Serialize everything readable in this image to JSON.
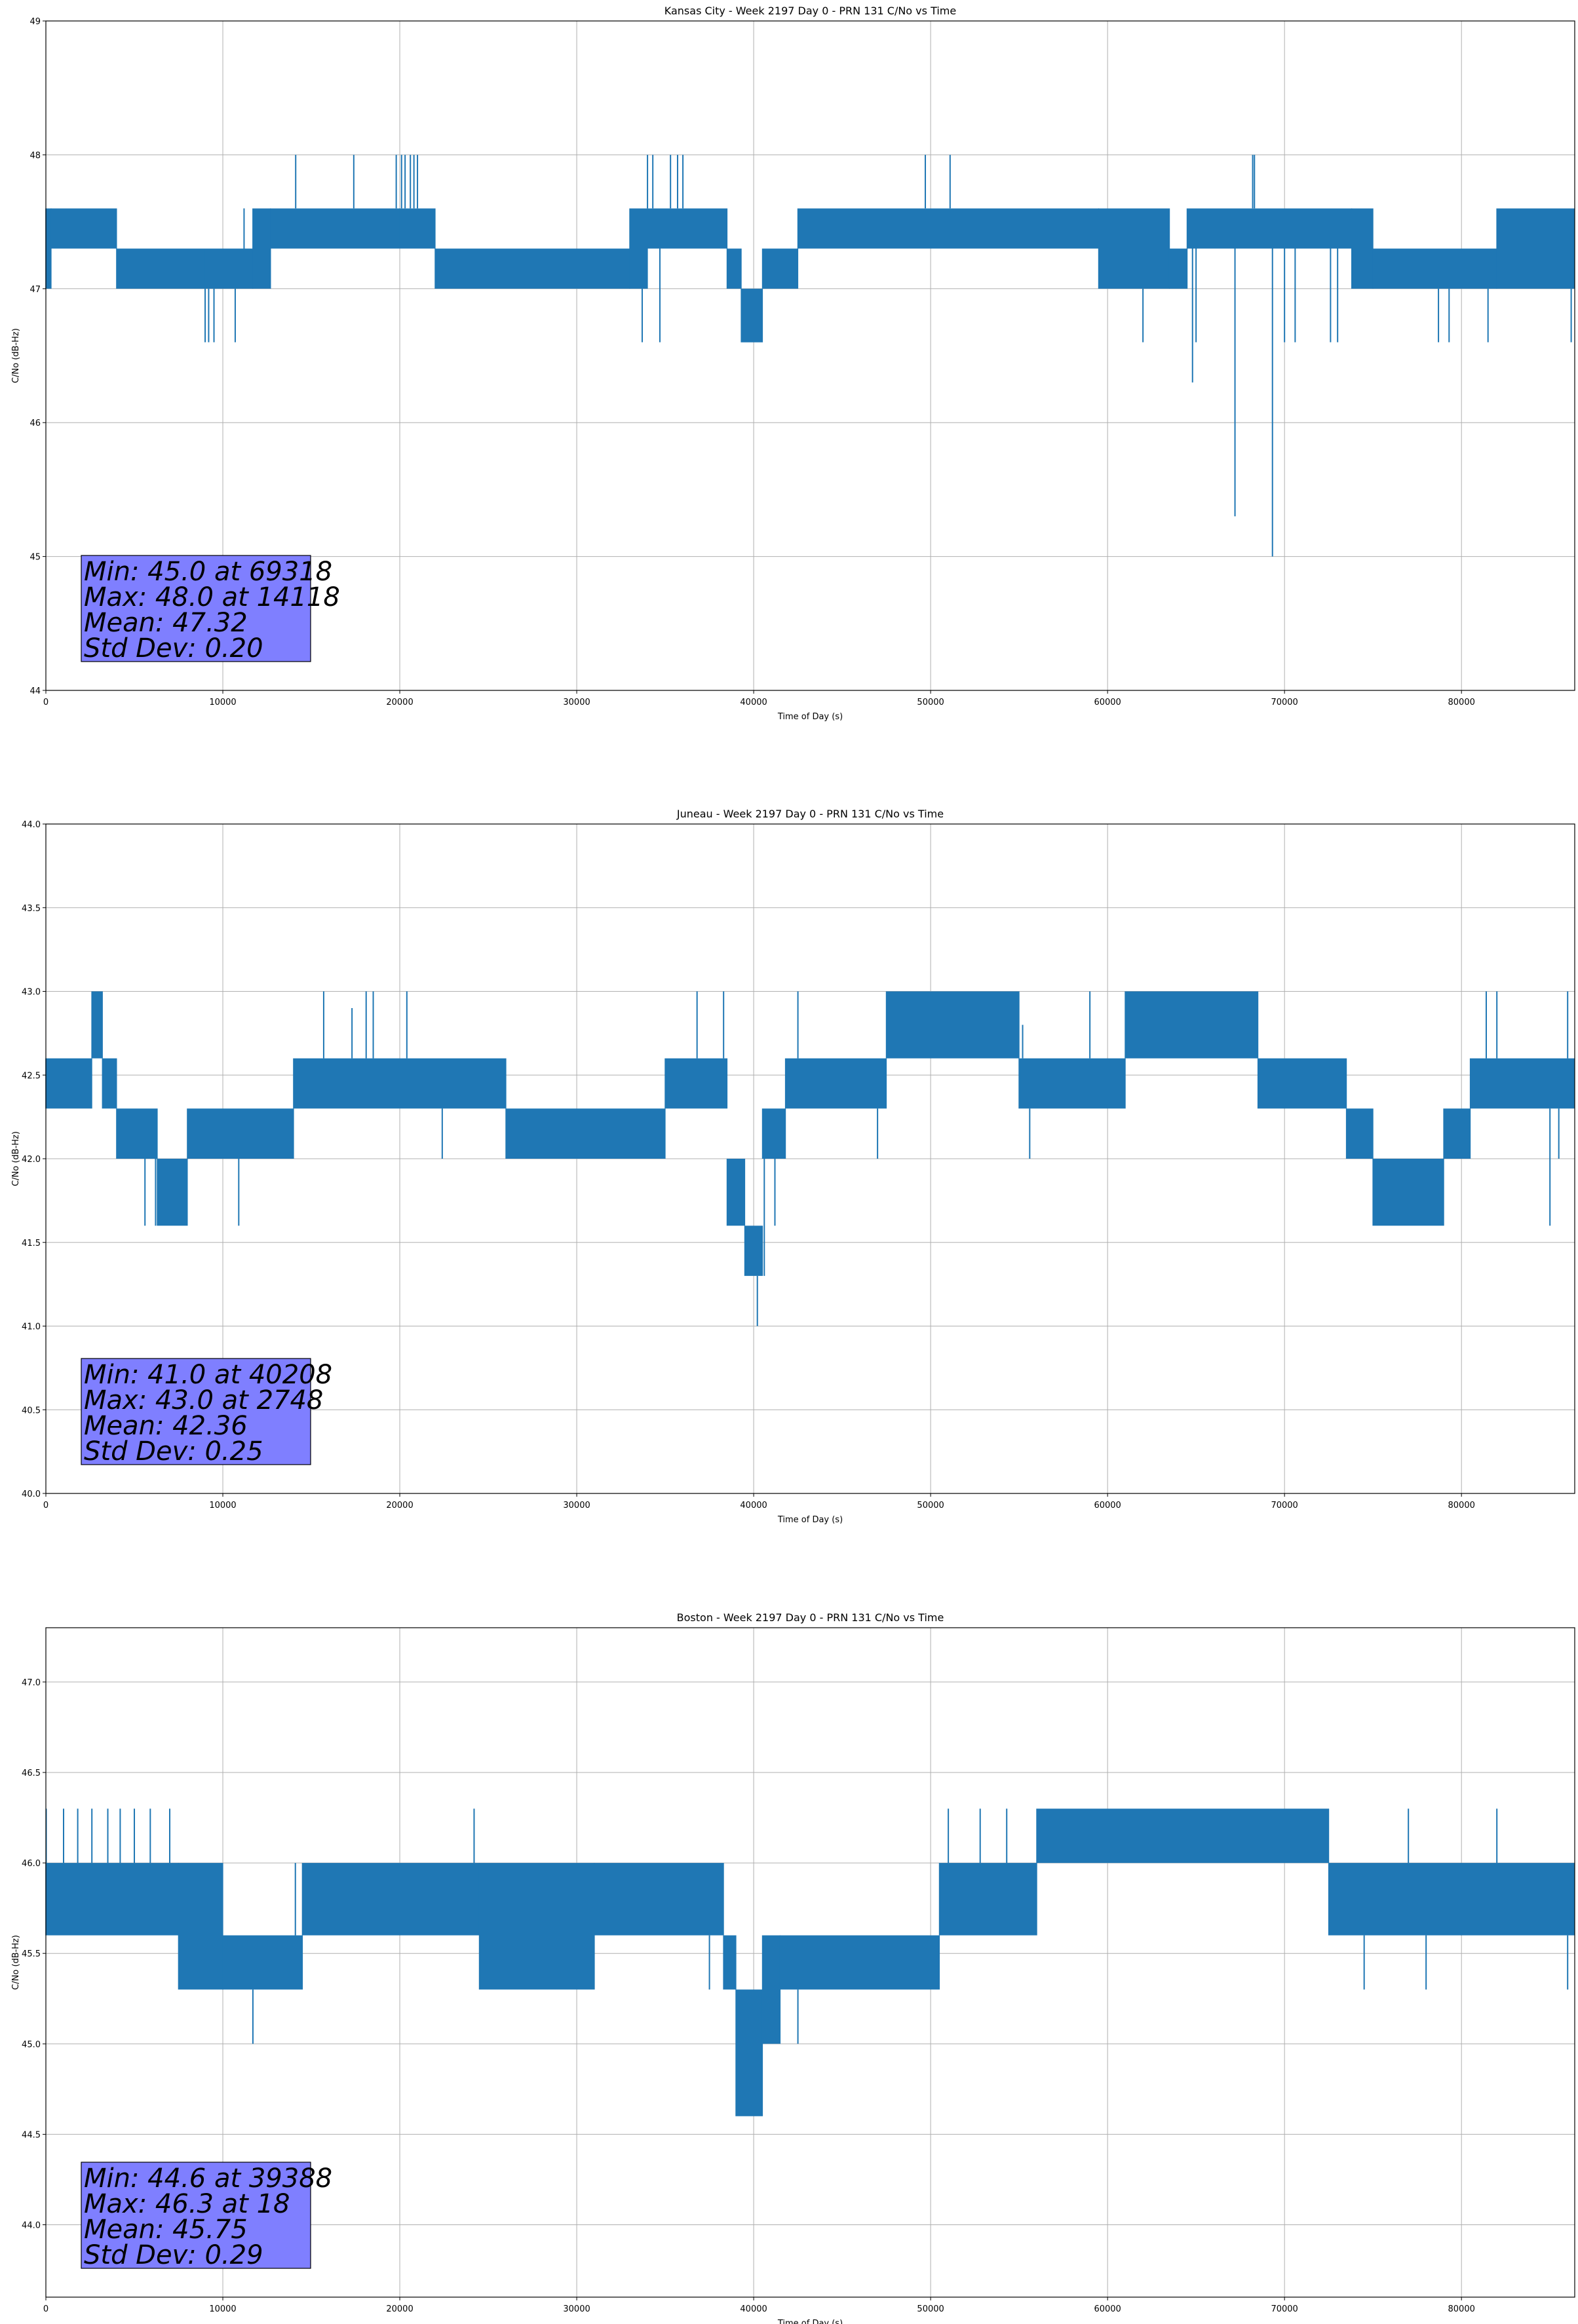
{
  "colors": {
    "line": "#1f77b4",
    "grid": "#b0b0b0",
    "stats_box": "#7f7fff",
    "axes": "#000000"
  },
  "chart_data": [
    {
      "type": "line",
      "title": "Kansas City - Week 2197 Day 0 - PRN 131 C/No vs Time",
      "xlabel": "Time of Day (s)",
      "ylabel": "C/No (dB-Hz)",
      "xlim": [
        0,
        86400
      ],
      "ylim": [
        44,
        49
      ],
      "xticks": [
        0,
        10000,
        20000,
        30000,
        40000,
        50000,
        60000,
        70000,
        80000
      ],
      "yticks": [
        44,
        45,
        46,
        47,
        48,
        49
      ],
      "xtick_labels": [
        "0",
        "10000",
        "20000",
        "30000",
        "40000",
        "50000",
        "60000",
        "70000",
        "80000"
      ],
      "ytick_labels": [
        "44",
        "45",
        "46",
        "47",
        "48",
        "49"
      ],
      "grid": true,
      "stats": [
        "Min: 45.0 at 69318",
        "Max: 48.0 at 14118",
        "Mean: 47.32",
        "Std Dev: 0.20"
      ],
      "bands": [
        [
          0,
          300,
          47.0,
          47.6
        ],
        [
          300,
          4000,
          47.3,
          47.6
        ],
        [
          4000,
          9000,
          47.0,
          47.3
        ],
        [
          9000,
          11700,
          47.0,
          47.3
        ],
        [
          11700,
          12700,
          47.0,
          47.6
        ],
        [
          12700,
          20000,
          47.3,
          47.6
        ],
        [
          20000,
          22000,
          47.3,
          47.6
        ],
        [
          22000,
          33000,
          47.0,
          47.3
        ],
        [
          33000,
          34000,
          47.0,
          47.6
        ],
        [
          34000,
          38500,
          47.3,
          47.6
        ],
        [
          38500,
          39300,
          47.0,
          47.3
        ],
        [
          39300,
          40500,
          46.6,
          47.0
        ],
        [
          40500,
          42500,
          47.0,
          47.3
        ],
        [
          42500,
          59500,
          47.3,
          47.6
        ],
        [
          59500,
          63500,
          47.0,
          47.6
        ],
        [
          63500,
          64500,
          47.0,
          47.3
        ],
        [
          64500,
          73800,
          47.3,
          47.6
        ],
        [
          73800,
          75000,
          47.0,
          47.6
        ],
        [
          75000,
          82000,
          47.0,
          47.3
        ],
        [
          82000,
          86400,
          47.0,
          47.6
        ]
      ],
      "spikes": [
        [
          9000,
          46.6
        ],
        [
          9200,
          46.6
        ],
        [
          9500,
          46.6
        ],
        [
          10700,
          46.6
        ],
        [
          11200,
          47.6
        ],
        [
          14118,
          48.0
        ],
        [
          17400,
          48.0
        ],
        [
          19800,
          48.0
        ],
        [
          20100,
          48.0
        ],
        [
          20300,
          48.0
        ],
        [
          20600,
          48.0
        ],
        [
          20800,
          48.0
        ],
        [
          21000,
          48.0
        ],
        [
          22300,
          47.0
        ],
        [
          33700,
          46.6
        ],
        [
          34000,
          48.0
        ],
        [
          34300,
          48.0
        ],
        [
          34700,
          46.6
        ],
        [
          35300,
          48.0
        ],
        [
          35700,
          48.0
        ],
        [
          36000,
          48.0
        ],
        [
          49700,
          48.0
        ],
        [
          51100,
          48.0
        ],
        [
          62000,
          46.6
        ],
        [
          64800,
          46.3
        ],
        [
          65000,
          46.6
        ],
        [
          67200,
          45.3
        ],
        [
          68200,
          48.0
        ],
        [
          68300,
          48.0
        ],
        [
          69318,
          45.0
        ],
        [
          70000,
          46.6
        ],
        [
          70600,
          46.6
        ],
        [
          72600,
          46.6
        ],
        [
          73000,
          46.6
        ],
        [
          78700,
          46.6
        ],
        [
          79300,
          46.6
        ],
        [
          81500,
          46.6
        ],
        [
          86200,
          46.6
        ]
      ]
    },
    {
      "type": "line",
      "title": "Juneau - Week 2197 Day 0 - PRN 131 C/No vs Time",
      "xlabel": "Time of Day (s)",
      "ylabel": "C/No (dB-Hz)",
      "xlim": [
        0,
        86400
      ],
      "ylim": [
        40.0,
        44.0
      ],
      "xticks": [
        0,
        10000,
        20000,
        30000,
        40000,
        50000,
        60000,
        70000,
        80000
      ],
      "yticks": [
        40.0,
        40.5,
        41.0,
        41.5,
        42.0,
        42.5,
        43.0,
        43.5,
        44.0
      ],
      "xtick_labels": [
        "0",
        "10000",
        "20000",
        "30000",
        "40000",
        "50000",
        "60000",
        "70000",
        "80000"
      ],
      "ytick_labels": [
        "40.0",
        "40.5",
        "41.0",
        "41.5",
        "42.0",
        "42.5",
        "43.0",
        "43.5",
        "44.0"
      ],
      "grid": true,
      "stats": [
        "Min: 41.0 at 40208",
        "Max: 43.0 at 2748",
        "Mean: 42.36",
        "Std Dev: 0.25"
      ],
      "bands": [
        [
          0,
          2600,
          42.3,
          42.6
        ],
        [
          2600,
          3200,
          42.6,
          43.0
        ],
        [
          3200,
          4000,
          42.3,
          42.6
        ],
        [
          4000,
          6300,
          42.0,
          42.3
        ],
        [
          6300,
          8000,
          41.6,
          42.0
        ],
        [
          8000,
          14000,
          42.0,
          42.3
        ],
        [
          14000,
          26000,
          42.3,
          42.6
        ],
        [
          26000,
          35000,
          42.0,
          42.3
        ],
        [
          35000,
          38500,
          42.3,
          42.6
        ],
        [
          38500,
          39500,
          41.6,
          42.0
        ],
        [
          39500,
          40500,
          41.3,
          41.6
        ],
        [
          40500,
          41800,
          42.0,
          42.3
        ],
        [
          41800,
          47500,
          42.3,
          42.6
        ],
        [
          47500,
          55000,
          42.6,
          43.0
        ],
        [
          55000,
          61000,
          42.3,
          42.6
        ],
        [
          61000,
          68500,
          42.6,
          43.0
        ],
        [
          68500,
          73500,
          42.3,
          42.6
        ],
        [
          73500,
          75000,
          42.0,
          42.3
        ],
        [
          75000,
          79000,
          41.6,
          42.0
        ],
        [
          79000,
          80500,
          42.0,
          42.3
        ],
        [
          80500,
          86400,
          42.3,
          42.6
        ]
      ],
      "spikes": [
        [
          2748,
          43.0
        ],
        [
          3100,
          43.0
        ],
        [
          5600,
          41.6
        ],
        [
          6200,
          41.6
        ],
        [
          10900,
          41.6
        ],
        [
          15700,
          43.0
        ],
        [
          17300,
          42.9
        ],
        [
          18100,
          43.0
        ],
        [
          18500,
          43.0
        ],
        [
          20400,
          43.0
        ],
        [
          22400,
          42.0
        ],
        [
          36800,
          43.0
        ],
        [
          38300,
          43.0
        ],
        [
          40208,
          41.0
        ],
        [
          40600,
          41.3
        ],
        [
          41200,
          41.6
        ],
        [
          42500,
          43.0
        ],
        [
          47000,
          42.0
        ],
        [
          55200,
          42.8
        ],
        [
          55600,
          42.0
        ],
        [
          59000,
          43.0
        ],
        [
          76000,
          41.6
        ],
        [
          81400,
          43.0
        ],
        [
          82000,
          43.0
        ],
        [
          85000,
          41.6
        ],
        [
          85500,
          42.0
        ],
        [
          86000,
          43.0
        ]
      ]
    },
    {
      "type": "line",
      "title": "Boston - Week 2197 Day 0 - PRN 131 C/No vs Time",
      "xlabel": "Time of Day (s)",
      "ylabel": "C/No (dB-Hz)",
      "xlim": [
        0,
        86400
      ],
      "ylim": [
        43.6,
        47.3
      ],
      "xticks": [
        0,
        10000,
        20000,
        30000,
        40000,
        50000,
        60000,
        70000,
        80000
      ],
      "yticks": [
        44.0,
        44.5,
        45.0,
        45.5,
        46.0,
        46.5,
        47.0
      ],
      "xtick_labels": [
        "0",
        "10000",
        "20000",
        "30000",
        "40000",
        "50000",
        "60000",
        "70000",
        "80000"
      ],
      "ytick_labels": [
        "44.0",
        "44.5",
        "45.0",
        "45.5",
        "46.0",
        "46.5",
        "47.0"
      ],
      "grid": true,
      "stats": [
        "Min: 44.6 at 39388",
        "Max: 46.3 at 18",
        "Mean: 45.75",
        "Std Dev: 0.29"
      ],
      "bands": [
        [
          0,
          7500,
          45.6,
          46.0
        ],
        [
          7500,
          10000,
          45.3,
          46.0
        ],
        [
          10000,
          14500,
          45.3,
          45.6
        ],
        [
          14500,
          24500,
          45.6,
          46.0
        ],
        [
          24500,
          31000,
          45.3,
          46.0
        ],
        [
          31000,
          38300,
          45.6,
          46.0
        ],
        [
          38300,
          39000,
          45.3,
          45.6
        ],
        [
          39000,
          40500,
          44.6,
          45.3
        ],
        [
          40500,
          41500,
          45.0,
          45.6
        ],
        [
          41500,
          50500,
          45.3,
          45.6
        ],
        [
          50500,
          56000,
          45.6,
          46.0
        ],
        [
          56000,
          72500,
          46.0,
          46.3
        ],
        [
          72500,
          80000,
          45.6,
          46.0
        ],
        [
          80000,
          86400,
          45.6,
          46.0
        ]
      ],
      "spikes": [
        [
          18,
          46.3
        ],
        [
          1000,
          46.3
        ],
        [
          1800,
          46.3
        ],
        [
          2600,
          46.3
        ],
        [
          3500,
          46.3
        ],
        [
          4200,
          46.3
        ],
        [
          5000,
          46.3
        ],
        [
          5900,
          46.3
        ],
        [
          7000,
          46.3
        ],
        [
          11700,
          45.0
        ],
        [
          14100,
          46.0
        ],
        [
          24200,
          46.3
        ],
        [
          27000,
          45.3
        ],
        [
          37500,
          45.3
        ],
        [
          39388,
          44.6
        ],
        [
          40100,
          44.6
        ],
        [
          42500,
          45.0
        ],
        [
          51000,
          46.3
        ],
        [
          52800,
          46.3
        ],
        [
          54300,
          46.3
        ],
        [
          74500,
          45.3
        ],
        [
          75100,
          46.0
        ],
        [
          77000,
          46.3
        ],
        [
          78000,
          45.3
        ],
        [
          82000,
          46.3
        ],
        [
          86000,
          45.3
        ]
      ]
    }
  ]
}
